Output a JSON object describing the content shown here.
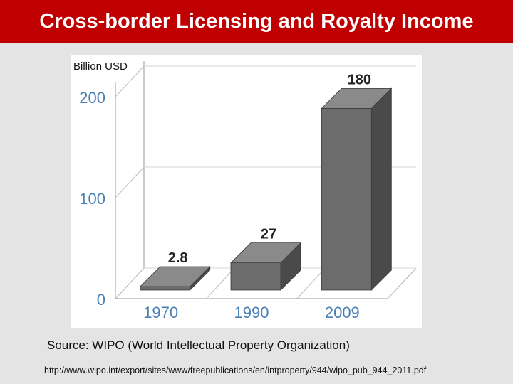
{
  "slide": {
    "title": "Cross-border Licensing and Royalty Income",
    "source": "Source: WIPO (World Intellectual Property Organization)",
    "url": "http://www.wipo.int/export/sites/www/freepublications/en/intproperty/944/wipo_pub_944_2011.pdf"
  },
  "colors": {
    "title_bar": "#c00000",
    "axis_labels": "#4a7fb5",
    "bar_top": "#8a8a8a",
    "bar_front": "#6c6c6c",
    "bar_side": "#4a4a4a"
  },
  "chart_data": {
    "type": "bar",
    "unit_label": "Billion USD",
    "categories": [
      "1970",
      "1990",
      "2009"
    ],
    "values": [
      2.8,
      27,
      180
    ],
    "value_labels": [
      "2.8",
      "27",
      "180"
    ],
    "y_ticks": [
      "0",
      "100",
      "200"
    ],
    "ylim": [
      0,
      200
    ],
    "grid": true
  }
}
